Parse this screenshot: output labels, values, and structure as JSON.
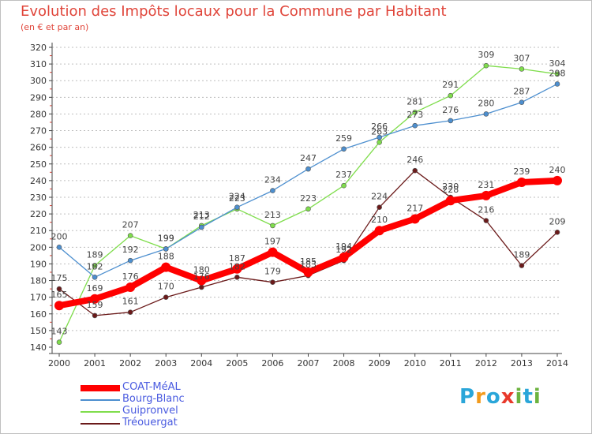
{
  "title": "Evolution des Impôts locaux pour la Commune par Habitant",
  "subtitle": "(en € et par an)",
  "logo": {
    "letters": [
      "P",
      "r",
      "o",
      "x",
      "i",
      "t",
      "i"
    ],
    "colors": [
      "#2aa6d9",
      "#f29a1c",
      "#2aa6d9",
      "#e8392b",
      "#6cb33f",
      "#2aa6d9",
      "#6cb33f"
    ]
  },
  "chart_data": {
    "type": "line",
    "categories": [
      "2000",
      "2001",
      "2002",
      "2003",
      "2004",
      "2005",
      "2006",
      "2007",
      "2008",
      "2009",
      "2010",
      "2011",
      "2012",
      "2013",
      "2014"
    ],
    "ylim": [
      140,
      320
    ],
    "yticks": [
      "140",
      "150",
      "160",
      "170",
      "180",
      "190",
      "200",
      "210",
      "220",
      "230",
      "240",
      "250",
      "260",
      "270",
      "280",
      "290",
      "300",
      "310",
      "320"
    ],
    "grid": "horizontal dashed",
    "legend_position": "bottom-left",
    "series": [
      {
        "name": "COAT-MéAL",
        "color": "#ff0000",
        "values": [
          165,
          169,
          176,
          188,
          180,
          187,
          197,
          185,
          194,
          210,
          217,
          228,
          231,
          239,
          240
        ]
      },
      {
        "name": "Bourg-Blanc",
        "color": "#4d8fcf",
        "values": [
          200,
          182,
          192,
          199,
          212,
          224,
          234,
          247,
          259,
          266,
          273,
          276,
          280,
          287,
          298
        ]
      },
      {
        "name": "Guipronvel",
        "color": "#7fdd4c",
        "values": [
          143,
          189,
          207,
          199,
          213,
          223,
          213,
          223,
          237,
          263,
          281,
          291,
          309,
          307,
          304
        ]
      },
      {
        "name": "Tréouergat",
        "color": "#6b1a1a",
        "values": [
          175,
          159,
          161,
          170,
          176,
          182,
          179,
          183,
          192,
          224,
          246,
          230,
          216,
          189,
          209
        ]
      }
    ]
  }
}
